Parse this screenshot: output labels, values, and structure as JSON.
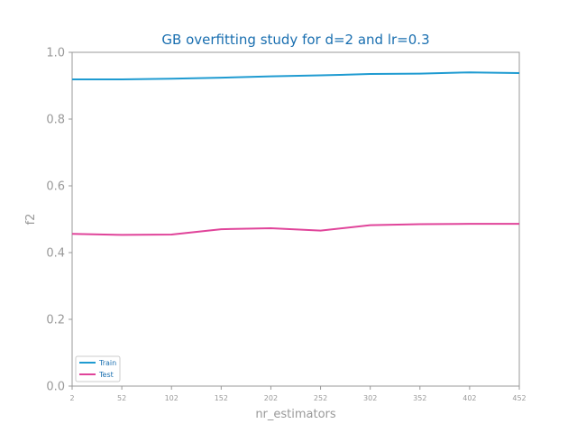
{
  "chart_data": {
    "type": "line",
    "title": "GB overfitting study for d=2 and lr=0.3",
    "xlabel": "nr_estimators",
    "ylabel": "f2",
    "x": [
      2,
      52,
      102,
      152,
      202,
      252,
      302,
      352,
      402,
      452
    ],
    "x_tick_labels": [
      "2",
      "52",
      "102",
      "152",
      "202",
      "252",
      "302",
      "352",
      "402",
      "452"
    ],
    "y_tick_labels": [
      "0.0",
      "0.2",
      "0.4",
      "0.6",
      "0.8",
      "1.0"
    ],
    "xlim": [
      2,
      452
    ],
    "ylim": [
      0.0,
      1.0
    ],
    "grid": false,
    "legend_position": "lower-left",
    "series": [
      {
        "name": "Train",
        "color": "#1f9bd1",
        "values": [
          0.919,
          0.919,
          0.921,
          0.924,
          0.928,
          0.931,
          0.935,
          0.936,
          0.94,
          0.938
        ]
      },
      {
        "name": "Test",
        "color": "#e0449a",
        "values": [
          0.456,
          0.453,
          0.454,
          0.47,
          0.473,
          0.466,
          0.482,
          0.485,
          0.486,
          0.486
        ]
      }
    ],
    "colors": {
      "title": "#1a6fb0",
      "axis_text": "#999999",
      "spine": "#999999",
      "legend_text": "#1a6fb0"
    }
  }
}
